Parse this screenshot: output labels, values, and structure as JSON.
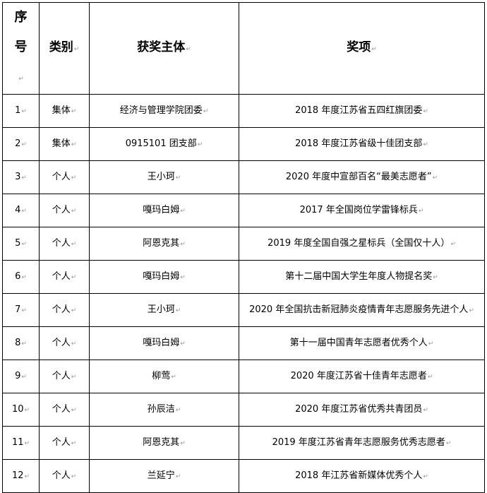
{
  "table": {
    "headers": [
      "序号",
      "类别",
      "获奖主体",
      "奖项"
    ],
    "rows": [
      [
        "1",
        "集体",
        "经济与管理学院团委",
        "2018 年度江苏省五四红旗团委"
      ],
      [
        "2",
        "集体",
        "0915101 团支部",
        "2018 年度江苏省级十佳团支部"
      ],
      [
        "3",
        "个人",
        "王小珂",
        "2020 年度中宣部百名“最美志愿者”"
      ],
      [
        "4",
        "个人",
        "嘎玛白姆",
        "2017 年全国岗位学雷锋标兵"
      ],
      [
        "5",
        "个人",
        "阿恩克其",
        "2019 年度全国自强之星标兵（全国仅十人）"
      ],
      [
        "6",
        "个人",
        "嘎玛白姆",
        "第十二届中国大学生年度人物提名奖"
      ],
      [
        "7",
        "个人",
        "王小珂",
        "2020 年全国抗击新冠肺炎疫情青年志愿服务先进个人"
      ],
      [
        "8",
        "个人",
        "嘎玛白姆",
        "第十一届中国青年志愿者优秀个人"
      ],
      [
        "9",
        "个人",
        "柳莺",
        "2020 年度江苏省十佳青年志愿者"
      ],
      [
        "10",
        "个人",
        "孙辰洁",
        "2020 年度江苏省优秀共青团员"
      ],
      [
        "11",
        "个人",
        "阿恩克其",
        "2019 年度江苏省青年志愿服务优秀志愿者"
      ],
      [
        "12",
        "个人",
        "兰延宁",
        "2018 年江苏省新媒体优秀个人"
      ]
    ]
  }
}
